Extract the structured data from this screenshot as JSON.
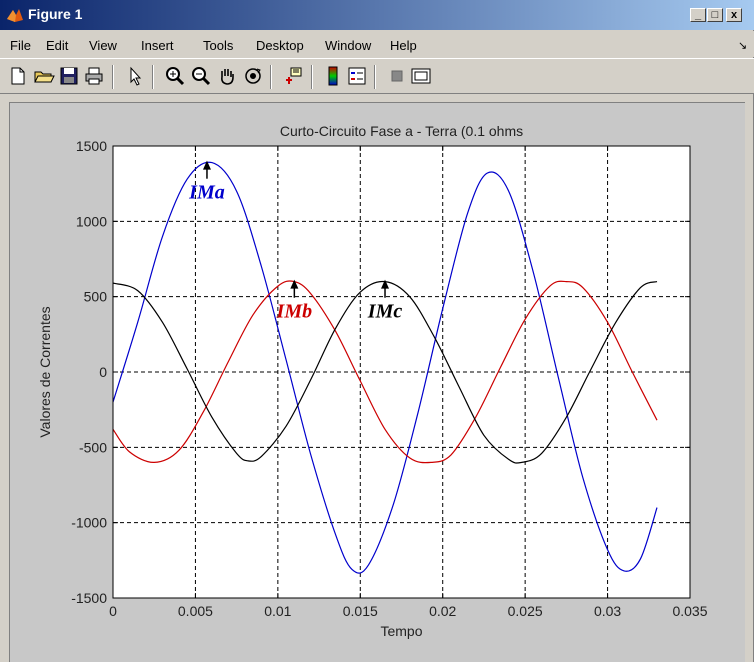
{
  "window": {
    "title": "Figure 1",
    "min_glyph": "_",
    "max_glyph": "□",
    "close_glyph": "x"
  },
  "menu": {
    "items": [
      "File",
      "Edit",
      "View",
      "Insert",
      "Tools",
      "Desktop",
      "Window",
      "Help"
    ],
    "arrow": "↘"
  },
  "toolbar": {
    "icons": [
      "new-file-icon",
      "open-folder-icon",
      "save-icon",
      "print-icon",
      "select-arrow-icon",
      "zoom-in-icon",
      "zoom-out-icon",
      "pan-hand-icon",
      "rotate-3d-icon",
      "data-cursor-icon",
      "colorbar-icon",
      "legend-icon",
      "hide-plot-tools-icon",
      "show-plot-tools-icon"
    ]
  },
  "chart_data": {
    "type": "line",
    "title": "Curto-Circuito Fase a - Terra (0.1 ohms",
    "xlabel": "Tempo",
    "ylabel": "Valores de Correntes",
    "xlim": [
      0,
      0.035
    ],
    "ylim": [
      -1500,
      1500
    ],
    "xticks": [
      0,
      0.005,
      0.01,
      0.015,
      0.02,
      0.025,
      0.03,
      0.035
    ],
    "xtick_labels": [
      "0",
      "0.005",
      "0.01",
      "0.015",
      "0.02",
      "0.025",
      "0.03",
      "0.035"
    ],
    "yticks": [
      -1500,
      -1000,
      -500,
      0,
      500,
      1000,
      1500
    ],
    "ytick_labels": [
      "-1500",
      "-1000",
      "-500",
      "0",
      "500",
      "1000",
      "1500"
    ],
    "grid": true,
    "series": [
      {
        "color": "#0000cc",
        "x": [
          0,
          0.0015,
          0.003,
          0.0045,
          0.006,
          0.0075,
          0.009,
          0.0105,
          0.012,
          0.0135,
          0.0145,
          0.0155,
          0.017,
          0.0185,
          0.02,
          0.0215,
          0.0227,
          0.024,
          0.0255,
          0.027,
          0.0285,
          0.03,
          0.031,
          0.032,
          0.033
        ],
        "y": [
          -200,
          330,
          900,
          1280,
          1390,
          1200,
          700,
          80,
          -550,
          -1080,
          -1310,
          -1280,
          -880,
          -270,
          420,
          1050,
          1320,
          1200,
          660,
          -30,
          -700,
          -1180,
          -1320,
          -1240,
          -900
        ]
      },
      {
        "color": "#cc0000",
        "x": [
          0,
          0.001,
          0.0025,
          0.004,
          0.0055,
          0.007,
          0.0085,
          0.01,
          0.011,
          0.012,
          0.0135,
          0.015,
          0.0165,
          0.018,
          0.0193,
          0.0205,
          0.022,
          0.0235,
          0.025,
          0.0265,
          0.0275,
          0.0285,
          0.03,
          0.0315,
          0.033
        ],
        "y": [
          -380,
          -530,
          -600,
          -520,
          -260,
          70,
          380,
          570,
          600,
          520,
          270,
          -60,
          -380,
          -570,
          -600,
          -550,
          -300,
          30,
          350,
          570,
          600,
          560,
          330,
          0,
          -320
        ]
      },
      {
        "color": "#000000",
        "x": [
          0,
          0.0015,
          0.003,
          0.0045,
          0.006,
          0.0075,
          0.0082,
          0.009,
          0.0105,
          0.012,
          0.0135,
          0.015,
          0.0165,
          0.018,
          0.0195,
          0.021,
          0.0225,
          0.024,
          0.0248,
          0.026,
          0.0275,
          0.029,
          0.0305,
          0.032,
          0.033
        ],
        "y": [
          590,
          540,
          330,
          20,
          -300,
          -540,
          -590,
          -560,
          -360,
          -50,
          290,
          530,
          600,
          500,
          230,
          -100,
          -420,
          -580,
          -600,
          -540,
          -300,
          20,
          330,
          560,
          600
        ]
      }
    ],
    "annotations": [
      {
        "text": "IMa",
        "color": "#0000cc",
        "x": 0.0057,
        "y": 1390,
        "label_x": 0.0057,
        "label_y": 1190
      },
      {
        "text": "IMb",
        "color": "#cc0000",
        "x": 0.011,
        "y": 600,
        "label_x": 0.011,
        "label_y": 400
      },
      {
        "text": "IMc",
        "color": "#000000",
        "x": 0.0165,
        "y": 600,
        "label_x": 0.0165,
        "label_y": 400
      }
    ]
  }
}
